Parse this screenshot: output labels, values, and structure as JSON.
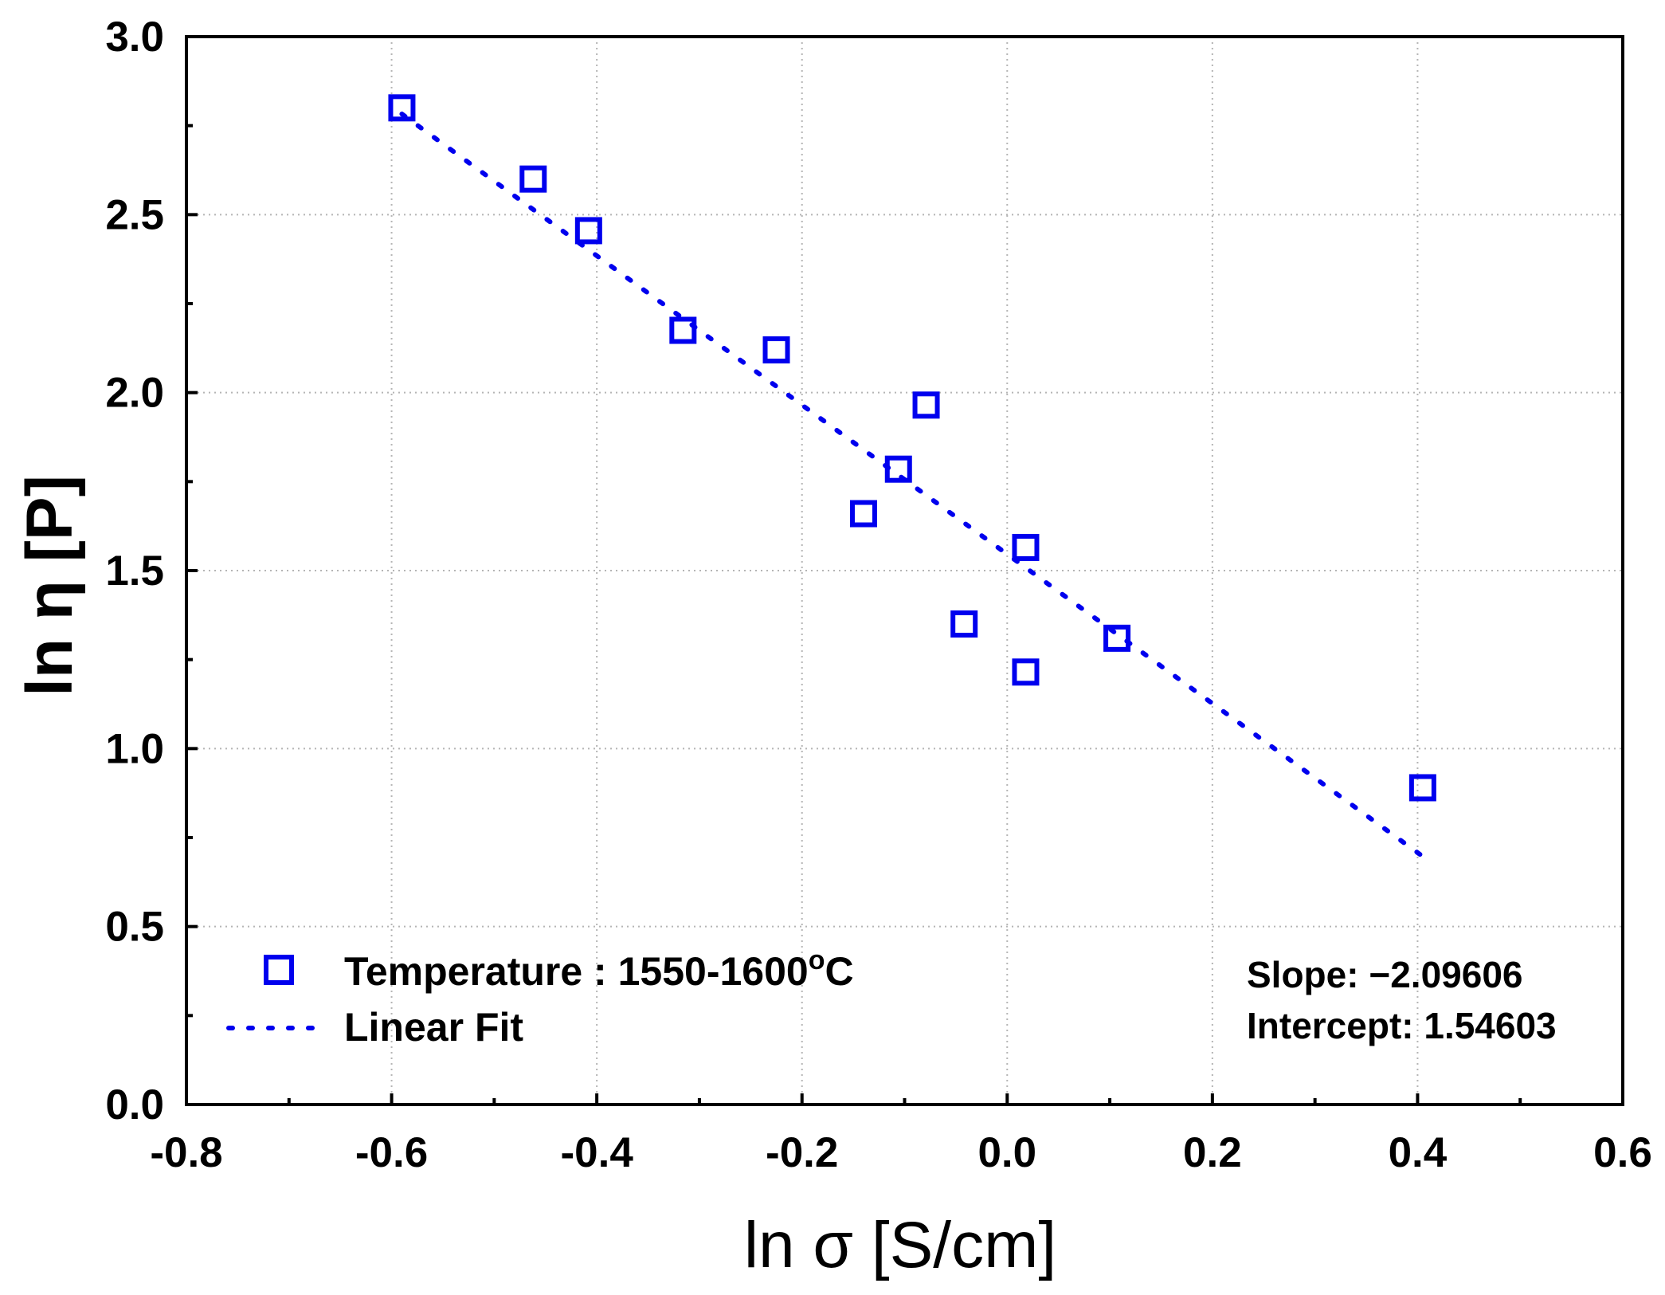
{
  "chart_data": {
    "type": "scatter",
    "title": "",
    "xlabel": "ln σ [S/cm]",
    "ylabel": "ln η [P]",
    "xlim": [
      -0.8,
      0.6
    ],
    "ylim": [
      0.0,
      3.0
    ],
    "x_ticks": [
      -0.8,
      -0.6,
      -0.4,
      -0.2,
      0.0,
      0.2,
      0.4,
      0.6
    ],
    "x_tick_labels": [
      "-0.8",
      "-0.6",
      "-0.4",
      "-0.2",
      "0.0",
      "0.2",
      "0.4",
      "0.6"
    ],
    "y_ticks": [
      0.0,
      0.5,
      1.0,
      1.5,
      2.0,
      2.5,
      3.0
    ],
    "y_tick_labels": [
      "0.0",
      "0.5",
      "1.0",
      "1.5",
      "2.0",
      "2.5",
      "3.0"
    ],
    "grid": true,
    "legend_position": "bottom-left",
    "series": [
      {
        "name": "Temperature : 1550-1600°C",
        "label_main": "Temperature : 1550-1600",
        "label_sup": "o",
        "label_unit": "C",
        "marker": "open-square",
        "color": "#0000ee",
        "points": [
          {
            "x": -0.59,
            "y": 2.8
          },
          {
            "x": -0.462,
            "y": 2.6
          },
          {
            "x": -0.408,
            "y": 2.455
          },
          {
            "x": -0.316,
            "y": 2.175
          },
          {
            "x": -0.225,
            "y": 2.12
          },
          {
            "x": -0.14,
            "y": 1.66
          },
          {
            "x": -0.106,
            "y": 1.785
          },
          {
            "x": -0.079,
            "y": 1.965
          },
          {
            "x": -0.042,
            "y": 1.35
          },
          {
            "x": 0.018,
            "y": 1.565
          },
          {
            "x": 0.018,
            "y": 1.215
          },
          {
            "x": 0.107,
            "y": 1.31
          },
          {
            "x": 0.405,
            "y": 0.89
          }
        ]
      },
      {
        "name": "Linear Fit",
        "style": "dotted-line",
        "color": "#0000ee",
        "slope": -2.09606,
        "intercept": 1.54603,
        "x_range": [
          -0.59,
          0.405
        ]
      }
    ],
    "annotations": {
      "slope": "Slope: −2.09606",
      "intercept": "Intercept: 1.54603"
    }
  }
}
